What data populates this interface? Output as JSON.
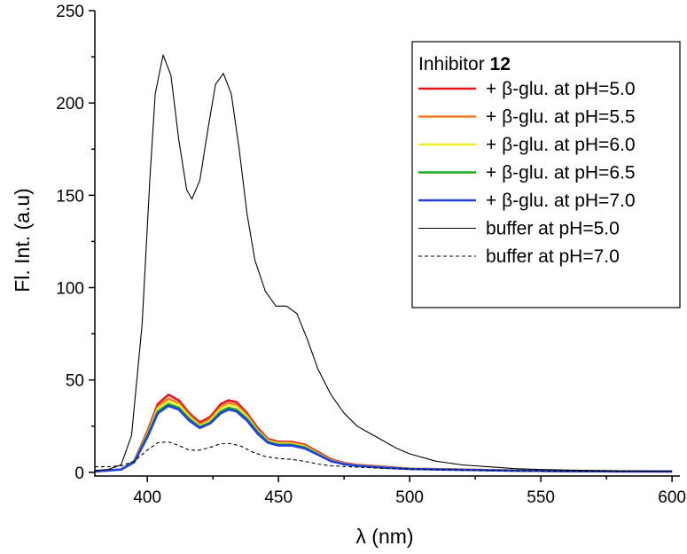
{
  "chart_data": {
    "type": "line",
    "xlabel": "λ (nm)",
    "ylabel": "Fl. Int. (a.u)",
    "xlim": [
      380,
      603
    ],
    "ylim": [
      -2,
      250
    ],
    "xticks": [
      400,
      450,
      500,
      550,
      600
    ],
    "yticks": [
      0,
      50,
      100,
      150,
      200,
      250
    ],
    "grid": false,
    "legend_position": "top-right",
    "legend_title": {
      "prefix": "Inhibitor ",
      "bold": "12"
    },
    "series": [
      {
        "name": "+ β-glu. at pH=5.0",
        "color": "#e8141b",
        "dash": "solid",
        "width": 2.6,
        "points": [
          [
            380,
            0.5
          ],
          [
            390,
            1.5
          ],
          [
            395,
            6
          ],
          [
            400,
            22
          ],
          [
            404,
            37
          ],
          [
            408,
            42
          ],
          [
            412,
            39
          ],
          [
            416,
            32
          ],
          [
            420,
            27
          ],
          [
            424,
            30
          ],
          [
            428,
            37
          ],
          [
            431,
            39
          ],
          [
            434,
            38
          ],
          [
            438,
            32
          ],
          [
            442,
            24
          ],
          [
            446,
            18
          ],
          [
            450,
            16.5
          ],
          [
            455,
            16.5
          ],
          [
            460,
            15
          ],
          [
            465,
            11
          ],
          [
            470,
            7
          ],
          [
            475,
            5
          ],
          [
            480,
            4
          ],
          [
            490,
            3
          ],
          [
            500,
            2
          ],
          [
            520,
            1.5
          ],
          [
            540,
            1
          ],
          [
            560,
            0.6
          ],
          [
            580,
            0.5
          ],
          [
            600,
            0.5
          ]
        ]
      },
      {
        "name": "+ β-glu. at pH=5.5",
        "color": "#f07b2a",
        "dash": "solid",
        "width": 2.4,
        "points": [
          [
            380,
            0.5
          ],
          [
            390,
            1.5
          ],
          [
            395,
            6
          ],
          [
            400,
            21
          ],
          [
            404,
            35.5
          ],
          [
            408,
            40
          ],
          [
            412,
            37.5
          ],
          [
            416,
            31
          ],
          [
            420,
            26
          ],
          [
            424,
            29
          ],
          [
            428,
            35.5
          ],
          [
            431,
            37.5
          ],
          [
            434,
            36.5
          ],
          [
            438,
            31
          ],
          [
            442,
            23
          ],
          [
            446,
            17.5
          ],
          [
            450,
            16
          ],
          [
            455,
            16
          ],
          [
            460,
            14.5
          ],
          [
            465,
            10.5
          ],
          [
            470,
            6.5
          ],
          [
            475,
            4.8
          ],
          [
            480,
            3.8
          ],
          [
            490,
            2.8
          ],
          [
            500,
            2
          ],
          [
            520,
            1.4
          ],
          [
            540,
            1
          ],
          [
            560,
            0.6
          ],
          [
            580,
            0.5
          ],
          [
            600,
            0.5
          ]
        ]
      },
      {
        "name": "+ β-glu. at pH=6.0",
        "color": "#f2ee2c",
        "dash": "solid",
        "width": 2.4,
        "points": [
          [
            380,
            0.5
          ],
          [
            390,
            1.5
          ],
          [
            395,
            6
          ],
          [
            400,
            20.5
          ],
          [
            404,
            34.5
          ],
          [
            408,
            38.5
          ],
          [
            412,
            36.5
          ],
          [
            416,
            30
          ],
          [
            420,
            25
          ],
          [
            424,
            28
          ],
          [
            428,
            34.5
          ],
          [
            431,
            36.5
          ],
          [
            434,
            35.5
          ],
          [
            438,
            30
          ],
          [
            442,
            22.5
          ],
          [
            446,
            17
          ],
          [
            450,
            15.5
          ],
          [
            455,
            15.5
          ],
          [
            460,
            14
          ],
          [
            465,
            10
          ],
          [
            470,
            6.3
          ],
          [
            475,
            4.6
          ],
          [
            480,
            3.7
          ],
          [
            490,
            2.7
          ],
          [
            500,
            2
          ],
          [
            520,
            1.4
          ],
          [
            540,
            1
          ],
          [
            560,
            0.6
          ],
          [
            580,
            0.5
          ],
          [
            600,
            0.5
          ]
        ]
      },
      {
        "name": "+ β-glu. at pH=6.5",
        "color": "#1da81c",
        "dash": "solid",
        "width": 2.4,
        "points": [
          [
            380,
            0.5
          ],
          [
            390,
            1.5
          ],
          [
            395,
            6
          ],
          [
            400,
            20
          ],
          [
            404,
            33
          ],
          [
            408,
            37
          ],
          [
            412,
            35
          ],
          [
            416,
            29
          ],
          [
            420,
            24.5
          ],
          [
            424,
            27
          ],
          [
            428,
            33
          ],
          [
            431,
            35
          ],
          [
            434,
            34
          ],
          [
            438,
            29
          ],
          [
            442,
            22
          ],
          [
            446,
            16.5
          ],
          [
            450,
            15
          ],
          [
            455,
            15
          ],
          [
            460,
            13.5
          ],
          [
            465,
            9.8
          ],
          [
            470,
            6.1
          ],
          [
            475,
            4.5
          ],
          [
            480,
            3.6
          ],
          [
            490,
            2.6
          ],
          [
            500,
            1.9
          ],
          [
            520,
            1.3
          ],
          [
            540,
            0.9
          ],
          [
            560,
            0.6
          ],
          [
            580,
            0.5
          ],
          [
            600,
            0.5
          ]
        ]
      },
      {
        "name": "+ β-glu. at pH=7.0",
        "color": "#1f3fe0",
        "dash": "solid",
        "width": 2.6,
        "points": [
          [
            380,
            0.5
          ],
          [
            390,
            1.5
          ],
          [
            395,
            5.5
          ],
          [
            400,
            19
          ],
          [
            404,
            32
          ],
          [
            408,
            36
          ],
          [
            412,
            34
          ],
          [
            416,
            28
          ],
          [
            420,
            24
          ],
          [
            424,
            26.5
          ],
          [
            428,
            32
          ],
          [
            431,
            34
          ],
          [
            434,
            33
          ],
          [
            438,
            28
          ],
          [
            442,
            21
          ],
          [
            446,
            16
          ],
          [
            450,
            14.5
          ],
          [
            455,
            14.5
          ],
          [
            460,
            13
          ],
          [
            465,
            9.5
          ],
          [
            470,
            6
          ],
          [
            475,
            4.4
          ],
          [
            480,
            3.5
          ],
          [
            490,
            2.5
          ],
          [
            500,
            1.8
          ],
          [
            520,
            1.3
          ],
          [
            540,
            0.9
          ],
          [
            560,
            0.6
          ],
          [
            580,
            0.5
          ],
          [
            600,
            0.5
          ]
        ]
      },
      {
        "name": "buffer at pH=5.0",
        "color": "#000000",
        "dash": "solid",
        "width": 1.1,
        "points": [
          [
            380,
            1
          ],
          [
            385,
            1.5
          ],
          [
            390,
            4
          ],
          [
            394,
            20
          ],
          [
            398,
            80
          ],
          [
            401,
            160
          ],
          [
            403,
            205
          ],
          [
            406,
            226
          ],
          [
            409,
            215
          ],
          [
            412,
            180
          ],
          [
            415,
            153
          ],
          [
            417,
            148
          ],
          [
            420,
            158
          ],
          [
            423,
            185
          ],
          [
            426,
            210
          ],
          [
            429,
            216
          ],
          [
            432,
            205
          ],
          [
            435,
            175
          ],
          [
            438,
            140
          ],
          [
            441,
            115
          ],
          [
            445,
            98
          ],
          [
            449,
            90
          ],
          [
            453,
            90
          ],
          [
            457,
            86
          ],
          [
            461,
            72
          ],
          [
            465,
            56
          ],
          [
            470,
            42
          ],
          [
            475,
            32
          ],
          [
            480,
            25
          ],
          [
            485,
            21
          ],
          [
            490,
            17
          ],
          [
            495,
            13
          ],
          [
            500,
            10
          ],
          [
            510,
            6
          ],
          [
            520,
            4
          ],
          [
            530,
            3
          ],
          [
            540,
            2
          ],
          [
            550,
            1.5
          ],
          [
            570,
            1
          ],
          [
            600,
            0.5
          ]
        ]
      },
      {
        "name": "buffer at pH=7.0",
        "color": "#000000",
        "dash": "4,3",
        "width": 1.1,
        "points": [
          [
            380,
            3
          ],
          [
            385,
            3
          ],
          [
            390,
            3.5
          ],
          [
            395,
            6
          ],
          [
            400,
            12
          ],
          [
            404,
            16
          ],
          [
            408,
            16.5
          ],
          [
            412,
            14.5
          ],
          [
            416,
            12
          ],
          [
            420,
            12
          ],
          [
            424,
            13.5
          ],
          [
            428,
            15.5
          ],
          [
            432,
            15.5
          ],
          [
            436,
            14
          ],
          [
            440,
            11
          ],
          [
            445,
            8.5
          ],
          [
            450,
            7.5
          ],
          [
            455,
            7
          ],
          [
            460,
            6
          ],
          [
            465,
            4.5
          ],
          [
            470,
            3.5
          ],
          [
            480,
            2.8
          ],
          [
            490,
            2.2
          ],
          [
            500,
            1.8
          ],
          [
            520,
            1.2
          ],
          [
            540,
            0.9
          ],
          [
            560,
            0.6
          ],
          [
            580,
            0.5
          ],
          [
            600,
            0.5
          ]
        ]
      }
    ]
  }
}
